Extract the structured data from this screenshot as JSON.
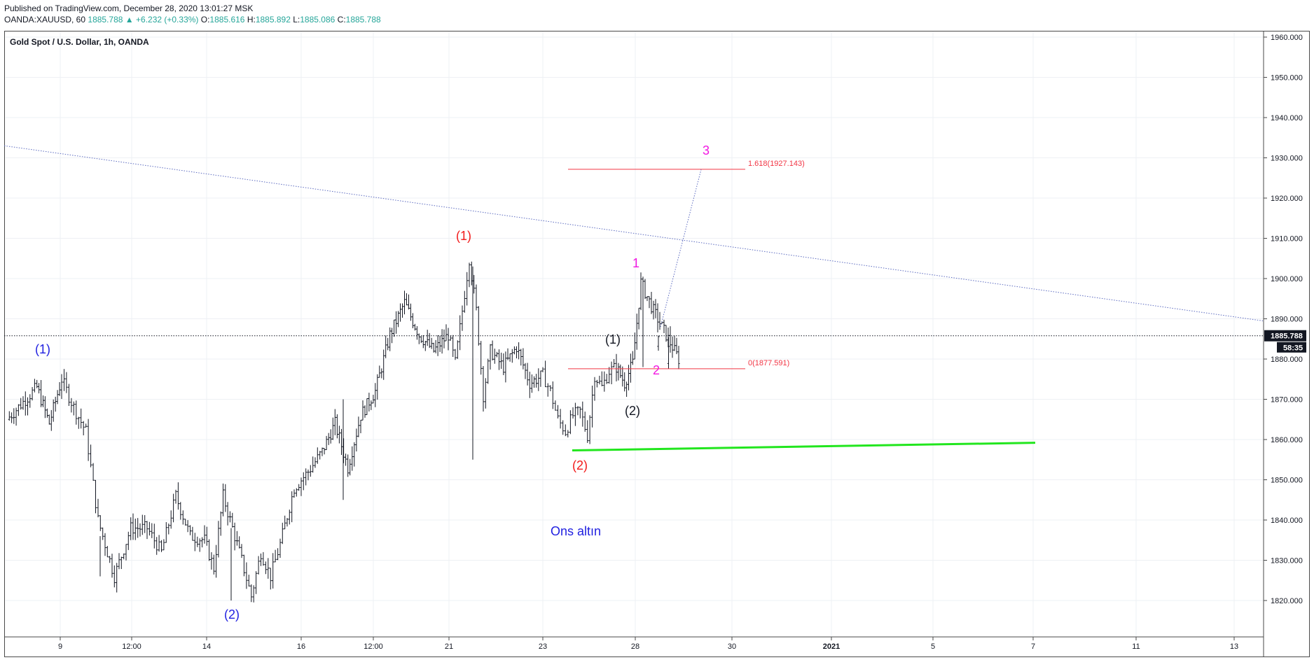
{
  "header": {
    "published": "Published on TradingView.com, December 28, 2020 13:01:27 MSK",
    "symbol": "OANDA:XAUUSD, 60",
    "last": "1885.788",
    "change": "▲ +6.232 (+0.33%)",
    "o_label": "O:",
    "o": "1885.616",
    "h_label": "H:",
    "h": "1885.892",
    "l_label": "L:",
    "l": "1885.086",
    "c_label": "C:",
    "c": "1885.788"
  },
  "chart_data": {
    "type": "candlestick",
    "title": "Gold Spot / U.S. Dollar, 1h, OANDA",
    "ylim": [
      1815,
      1962
    ],
    "y_ticks": [
      "1960.000",
      "1950.000",
      "1940.000",
      "1930.000",
      "1920.000",
      "1910.000",
      "1900.000",
      "1890.000",
      "1880.000",
      "1870.000",
      "1860.000",
      "1850.000",
      "1840.000",
      "1830.000",
      "1820.000"
    ],
    "x_ticks": [
      "9",
      "12:00",
      "14",
      "16",
      "12:00",
      "21",
      "23",
      "28",
      "30",
      "2021",
      "5",
      "7",
      "11",
      "13"
    ],
    "last_price_label": "1885.788",
    "countdown_label": "58:35",
    "colors": {
      "price_line": "#131722",
      "trendline": "#5c6bc0",
      "fib": "#f23645",
      "green_line": "#22e61e",
      "blue_label": "#1f1fe0",
      "red_label": "#f21b1b",
      "magenta_label": "#f218e2",
      "black_label": "#131722"
    },
    "path_anchors": [
      {
        "x": "Dec 8",
        "y": 1865
      },
      {
        "x": "Dec 8",
        "y": 1873
      },
      {
        "x": "Dec 8",
        "y": 1864
      },
      {
        "x": "Dec 9",
        "y": 1875
      },
      {
        "x": "Dec 9",
        "y": 1868
      },
      {
        "x": "Dec 9",
        "y": 1862
      },
      {
        "x": "Dec 10",
        "y": 1840
      },
      {
        "x": "Dec 10",
        "y": 1826
      },
      {
        "x": "Dec 10",
        "y": 1838
      },
      {
        "x": "Dec 11",
        "y": 1838
      },
      {
        "x": "Dec 11",
        "y": 1832
      },
      {
        "x": "Dec 11",
        "y": 1846
      },
      {
        "x": "Dec 11",
        "y": 1836
      },
      {
        "x": "Dec 14",
        "y": 1835
      },
      {
        "x": "Dec 14",
        "y": 1828
      },
      {
        "x": "Dec 14",
        "y": 1846
      },
      {
        "x": "Dec 14",
        "y": 1838
      },
      {
        "x": "Dec 15",
        "y": 1830
      },
      {
        "x": "Dec 15",
        "y": 1821
      },
      {
        "x": "Dec 15",
        "y": 1832
      },
      {
        "x": "Dec 15",
        "y": 1826
      },
      {
        "x": "Dec 16",
        "y": 1834
      },
      {
        "x": "Dec 16",
        "y": 1848
      },
      {
        "x": "Dec 16",
        "y": 1852
      },
      {
        "x": "Dec 17",
        "y": 1857
      },
      {
        "x": "Dec 17",
        "y": 1864
      },
      {
        "x": "Dec 17",
        "y": 1853
      },
      {
        "x": "Dec 18",
        "y": 1866
      },
      {
        "x": "Dec 18",
        "y": 1872
      },
      {
        "x": "Dec 18",
        "y": 1886
      },
      {
        "x": "Dec 18",
        "y": 1894
      },
      {
        "x": "Dec 18",
        "y": 1886
      },
      {
        "x": "Dec 18",
        "y": 1882
      },
      {
        "x": "Dec 21",
        "y": 1886
      },
      {
        "x": "Dec 21",
        "y": 1879
      },
      {
        "x": "Dec 21",
        "y": 1892
      },
      {
        "x": "Dec 21",
        "y": 1905
      },
      {
        "x": "Dec 21",
        "y": 1892
      },
      {
        "x": "Dec 21",
        "y": 1871
      },
      {
        "x": "Dec 22",
        "y": 1882
      },
      {
        "x": "Dec 22",
        "y": 1878
      },
      {
        "x": "Dec 22",
        "y": 1883
      },
      {
        "x": "Dec 22",
        "y": 1874
      },
      {
        "x": "Dec 23",
        "y": 1876
      },
      {
        "x": "Dec 23",
        "y": 1872
      },
      {
        "x": "Dec 23",
        "y": 1865
      },
      {
        "x": "Dec 23",
        "y": 1862
      },
      {
        "x": "Dec 24",
        "y": 1866
      },
      {
        "x": "Dec 24",
        "y": 1867
      },
      {
        "x": "Dec 24",
        "y": 1861
      },
      {
        "x": "Dec 24",
        "y": 1876
      },
      {
        "x": "Dec 24",
        "y": 1873
      },
      {
        "x": "Dec 24",
        "y": 1877
      },
      {
        "x": "Dec 25",
        "y": 1878
      },
      {
        "x": "Dec 25",
        "y": 1874
      },
      {
        "x": "Dec 25",
        "y": 1879
      },
      {
        "x": "Dec 28",
        "y": 1899
      },
      {
        "x": "Dec 28",
        "y": 1892
      },
      {
        "x": "Dec 28",
        "y": 1886
      },
      {
        "x": "Dec 28",
        "y": 1880
      },
      {
        "x": "Dec 28",
        "y": 1886
      }
    ],
    "fib": [
      {
        "label": "1.618(1927.143)",
        "value": 1927.143
      },
      {
        "label": "0(1877.591)",
        "value": 1877.591
      }
    ],
    "annotations": [
      {
        "text": "(1)",
        "color": "blue",
        "x": "Dec 8",
        "y": 1881
      },
      {
        "text": "(2)",
        "color": "blue",
        "x": "Dec 15",
        "y": 1815
      },
      {
        "text": "(1)",
        "color": "red",
        "x": "Dec 21",
        "y": 1909
      },
      {
        "text": "(2)",
        "color": "red",
        "x": "Dec 24",
        "y": 1851
      },
      {
        "text": "(1)",
        "color": "black",
        "x": "Dec 25",
        "y": 1883
      },
      {
        "text": "(2)",
        "color": "black",
        "x": "Dec 25",
        "y": 1866
      },
      {
        "text": "1",
        "color": "magenta",
        "x": "Dec 28",
        "y": 1903
      },
      {
        "text": "2",
        "color": "magenta",
        "x": "Dec 28",
        "y": 1876
      },
      {
        "text": "3",
        "color": "magenta",
        "x": "Dec 29",
        "y": 1931
      },
      {
        "text": "Ons altın",
        "color": "blue",
        "x": "Dec 24",
        "y": 1838
      }
    ]
  }
}
